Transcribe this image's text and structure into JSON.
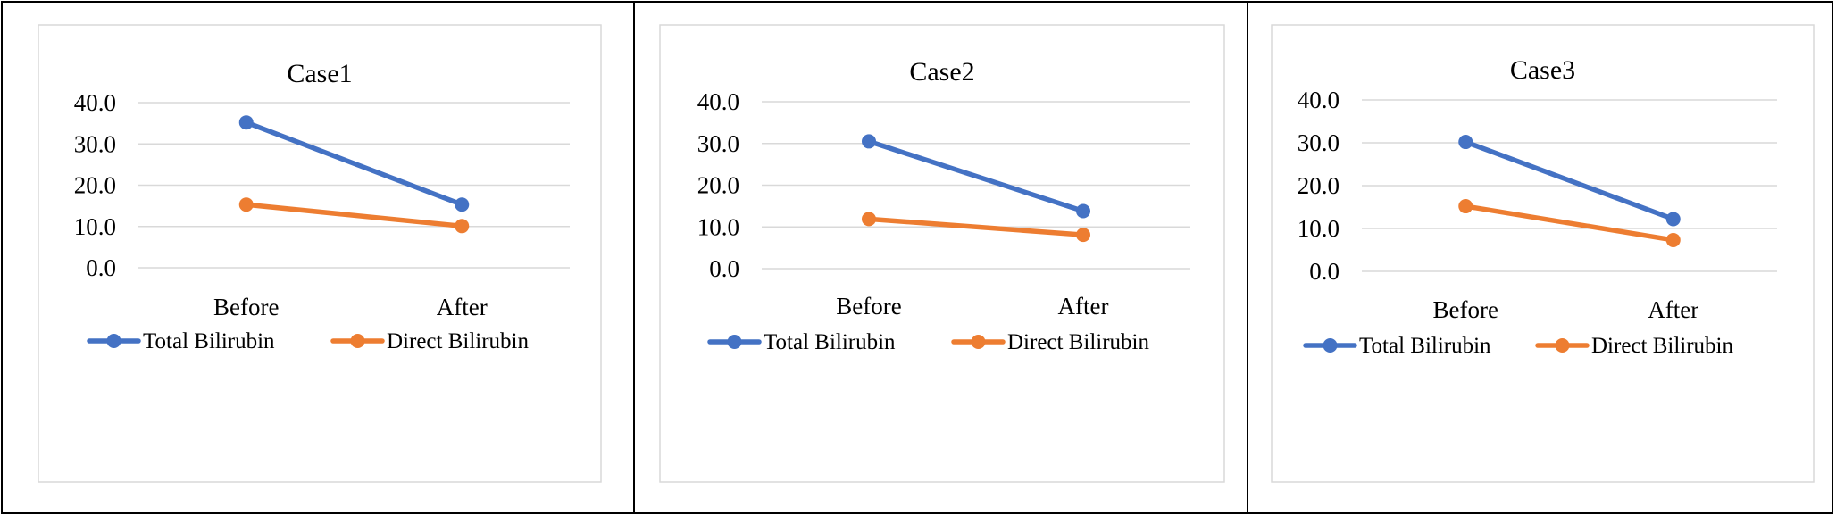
{
  "colors": {
    "total": "#4472C4",
    "direct": "#ED7D31",
    "grid": "#D9D9D9",
    "frame": "#000000",
    "chart_border": "#D9D9D9"
  },
  "chart_data": [
    {
      "type": "line",
      "title": "Case1",
      "categories": [
        "Before",
        "After"
      ],
      "series": [
        {
          "name": "Total Bilirubin",
          "values": [
            35.2,
            15.3
          ]
        },
        {
          "name": "Direct Bilirubin",
          "values": [
            15.3,
            10.1
          ]
        }
      ],
      "yticks": [
        "0.0",
        "10.0",
        "20.0",
        "30.0",
        "40.0"
      ],
      "ylim": [
        0,
        40
      ],
      "grid": true,
      "legend": "bottom"
    },
    {
      "type": "line",
      "title": "Case2",
      "categories": [
        "Before",
        "After"
      ],
      "series": [
        {
          "name": "Total Bilirubin",
          "values": [
            30.5,
            13.8
          ]
        },
        {
          "name": "Direct Bilirubin",
          "values": [
            11.9,
            8.1
          ]
        }
      ],
      "yticks": [
        "0.0",
        "10.0",
        "20.0",
        "30.0",
        "40.0"
      ],
      "ylim": [
        0,
        40
      ],
      "grid": true,
      "legend": "bottom"
    },
    {
      "type": "line",
      "title": "Case3",
      "categories": [
        "Before",
        "After"
      ],
      "series": [
        {
          "name": "Total Bilirubin",
          "values": [
            30.2,
            12.2
          ]
        },
        {
          "name": "Direct Bilirubin",
          "values": [
            15.2,
            7.3
          ]
        }
      ],
      "yticks": [
        "0.0",
        "10.0",
        "20.0",
        "30.0",
        "40.0"
      ],
      "ylim": [
        0,
        40
      ],
      "grid": true,
      "legend": "bottom"
    }
  ]
}
